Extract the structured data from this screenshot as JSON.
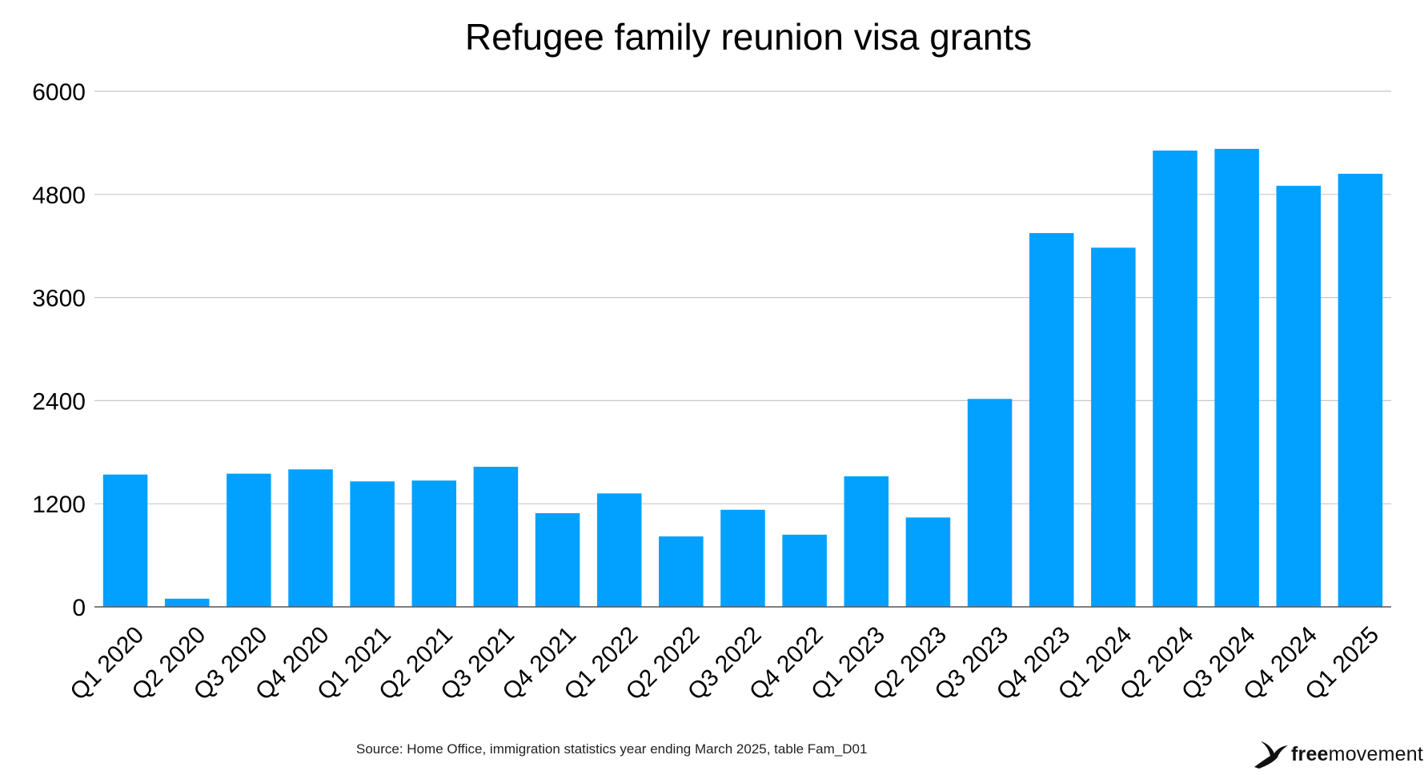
{
  "colors": {
    "bar": "#03A1FF",
    "grid": "#c8c8c8",
    "text": "#000000"
  },
  "source_note": "Source: Home Office, immigration statistics year ending March 2025, table Fam_D01",
  "logo": {
    "free": "free",
    "movement": "movement",
    "icon": "bird-icon"
  },
  "chart_data": {
    "type": "bar",
    "title": "Refugee family reunion visa grants",
    "xlabel": "",
    "ylabel": "",
    "ylim": [
      0,
      6000
    ],
    "yticks": [
      0,
      1200,
      2400,
      3600,
      4800,
      6000
    ],
    "grid": true,
    "legend": "none",
    "categories": [
      "Q1 2020",
      "Q2 2020",
      "Q3 2020",
      "Q4 2020",
      "Q1 2021",
      "Q2 2021",
      "Q3 2021",
      "Q4 2021",
      "Q1 2022",
      "Q2 2022",
      "Q3 2022",
      "Q4 2022",
      "Q1 2023",
      "Q2 2023",
      "Q3 2023",
      "Q4 2023",
      "Q1 2024",
      "Q2 2024",
      "Q3 2024",
      "Q4 2024",
      "Q1 2025"
    ],
    "values": [
      1540,
      95,
      1550,
      1600,
      1460,
      1470,
      1630,
      1090,
      1320,
      820,
      1130,
      840,
      1520,
      1040,
      2420,
      4350,
      4180,
      5310,
      5330,
      4900,
      5040
    ]
  }
}
